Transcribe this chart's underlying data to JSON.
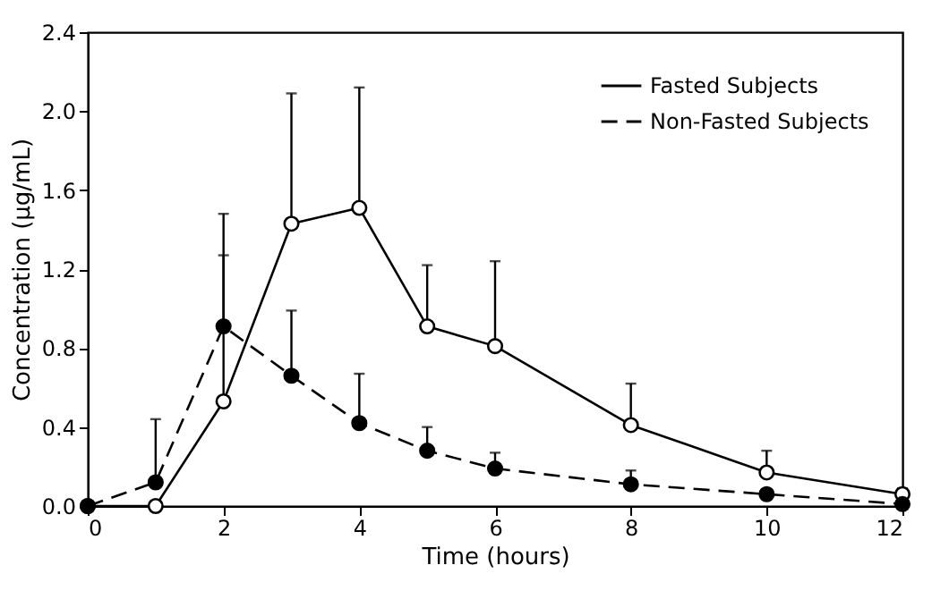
{
  "chart_data": {
    "type": "line",
    "xlabel": "Time (hours)",
    "ylabel": "Concentration (μg/mL)",
    "x": [
      0,
      1,
      2,
      3,
      4,
      5,
      6,
      8,
      10,
      12
    ],
    "series": [
      {
        "name": "Fasted Subjects",
        "color": "#000000",
        "line_style": "solid",
        "values": [
          0,
          0,
          0.53,
          1.43,
          1.51,
          0.91,
          0.81,
          0.41,
          0.17,
          0.06
        ],
        "errors": [
          null,
          null,
          [
            0.53,
            1.27
          ],
          [
            1.43,
            2.09
          ],
          [
            1.51,
            2.12
          ],
          [
            0.91,
            1.22
          ],
          [
            0.81,
            1.24
          ],
          [
            0.41,
            0.62
          ],
          [
            0.17,
            0.28
          ],
          [
            0.06,
            0.09
          ]
        ]
      },
      {
        "name": "Non-Fasted Subjects",
        "color": "#000000",
        "line_style": "dashed",
        "values": [
          0,
          0.12,
          0.91,
          0.66,
          0.42,
          0.28,
          0.19,
          0.11,
          0.06,
          0.01
        ],
        "errors": [
          null,
          [
            0.12,
            0.44
          ],
          [
            0.91,
            1.48
          ],
          [
            0.66,
            0.99
          ],
          [
            0.42,
            0.67
          ],
          [
            0.28,
            0.4
          ],
          [
            0.19,
            0.27
          ],
          [
            0.11,
            0.18
          ],
          null,
          null
        ]
      }
    ],
    "marker": "circle",
    "legend": "top right",
    "grid": false,
    "xlim": [
      0,
      12
    ],
    "xticks": [
      0,
      2,
      4,
      6,
      8,
      10,
      12
    ],
    "ylim": [
      0,
      2.4
    ],
    "yticks": [
      {
        "value": 0,
        "label": "0.0"
      },
      {
        "value": 0.4,
        "label": "0.4"
      },
      {
        "value": 0.8,
        "label": "0.8"
      },
      {
        "value": 1.2,
        "label": "1.2"
      },
      {
        "value": 1.6,
        "label": "1.6"
      },
      {
        "value": 2,
        "label": "2.0"
      },
      {
        "value": 2.4,
        "label": "2.4"
      }
    ]
  }
}
